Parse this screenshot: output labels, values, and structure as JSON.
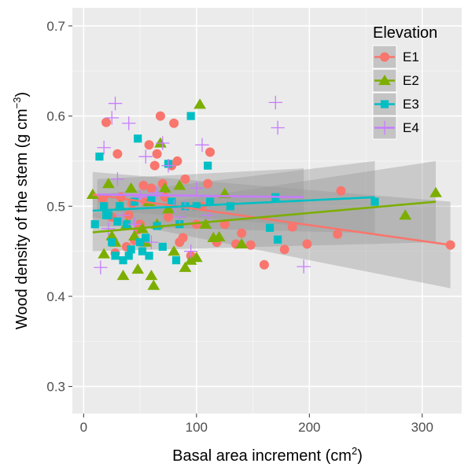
{
  "chart_data": {
    "type": "scatter",
    "xlabel": "Basal area increment (cm",
    "xlabel_sup": "2",
    "xlabel_end": ")",
    "ylabel": "Wood density of the stem (g cm",
    "ylabel_sup": "−3",
    "ylabel_end": ")",
    "xlim": [
      -10,
      335
    ],
    "ylim": [
      0.27,
      0.72
    ],
    "xticks": [
      0,
      100,
      200,
      300
    ],
    "yticks": [
      0.3,
      0.4,
      0.5,
      0.6,
      0.7
    ],
    "xtick_labels": [
      "0",
      "100",
      "200",
      "300"
    ],
    "ytick_labels": [
      "0.3",
      "0.4",
      "0.5",
      "0.6",
      "0.7"
    ],
    "grid": true,
    "legend": {
      "title": "Elevation",
      "position": "top-right"
    },
    "series": [
      {
        "name": "E1",
        "color": "#F8766D",
        "marker": "circle",
        "fit": {
          "x": [
            8,
            325
          ],
          "y": [
            0.513,
            0.457
          ],
          "ci_x": [
            8,
            325
          ],
          "ci_lower": [
            0.488,
            0.409
          ],
          "ci_upper": [
            0.538,
            0.505
          ]
        },
        "x": [
          17,
          20,
          25,
          28,
          30,
          33,
          38,
          40,
          43,
          45,
          48,
          50,
          53,
          55,
          58,
          60,
          63,
          65,
          68,
          70,
          72,
          75,
          78,
          80,
          83,
          85,
          88,
          90,
          95,
          100,
          105,
          110,
          112,
          118,
          125,
          135,
          140,
          148,
          160,
          178,
          185,
          198,
          225,
          228,
          325
        ],
        "y": [
          0.508,
          0.593,
          0.488,
          0.448,
          0.558,
          0.51,
          0.455,
          0.49,
          0.503,
          0.462,
          0.474,
          0.48,
          0.523,
          0.505,
          0.568,
          0.52,
          0.545,
          0.558,
          0.6,
          0.525,
          0.51,
          0.488,
          0.545,
          0.592,
          0.55,
          0.46,
          0.465,
          0.53,
          0.445,
          0.48,
          0.5,
          0.525,
          0.56,
          0.46,
          0.48,
          0.458,
          0.47,
          0.457,
          0.435,
          0.452,
          0.477,
          0.458,
          0.469,
          0.517,
          0.457
        ]
      },
      {
        "name": "E2",
        "color": "#7CAE00",
        "marker": "triangle",
        "fit": {
          "x": [
            8,
            312
          ],
          "y": [
            0.471,
            0.505
          ],
          "ci_x": [
            8,
            312
          ],
          "ci_lower": [
            0.45,
            0.46
          ],
          "ci_upper": [
            0.492,
            0.55
          ]
        },
        "x": [
          8,
          18,
          22,
          25,
          28,
          32,
          35,
          38,
          42,
          45,
          48,
          52,
          55,
          58,
          60,
          62,
          65,
          68,
          72,
          75,
          80,
          85,
          90,
          95,
          100,
          103,
          108,
          115,
          120,
          125,
          140,
          285,
          312
        ],
        "y": [
          0.513,
          0.447,
          0.525,
          0.467,
          0.46,
          0.5,
          0.423,
          0.48,
          0.52,
          0.467,
          0.43,
          0.475,
          0.46,
          0.505,
          0.423,
          0.412,
          0.48,
          0.57,
          0.52,
          0.497,
          0.45,
          0.523,
          0.432,
          0.44,
          0.443,
          0.613,
          0.48,
          0.465,
          0.466,
          0.514,
          0.458,
          0.49,
          0.515
        ]
      },
      {
        "name": "E3",
        "color": "#00BFC4",
        "marker": "square",
        "fit": {
          "x": [
            8,
            258
          ],
          "y": [
            0.495,
            0.51
          ],
          "ci_x": [
            8,
            258
          ],
          "ci_lower": [
            0.478,
            0.47
          ],
          "ci_upper": [
            0.512,
            0.55
          ]
        },
        "x": [
          10,
          14,
          18,
          20,
          22,
          25,
          28,
          30,
          32,
          35,
          38,
          40,
          42,
          45,
          48,
          50,
          52,
          55,
          58,
          60,
          65,
          70,
          75,
          78,
          82,
          85,
          90,
          95,
          100,
          110,
          112,
          130,
          165,
          170,
          172,
          258
        ],
        "y": [
          0.48,
          0.555,
          0.5,
          0.49,
          0.49,
          0.46,
          0.445,
          0.483,
          0.5,
          0.44,
          0.48,
          0.445,
          0.452,
          0.505,
          0.575,
          0.46,
          0.45,
          0.465,
          0.445,
          0.508,
          0.478,
          0.455,
          0.547,
          0.505,
          0.44,
          0.48,
          0.5,
          0.6,
          0.5,
          0.545,
          0.505,
          0.5,
          0.476,
          0.51,
          0.463,
          0.505
        ]
      },
      {
        "name": "E4",
        "color": "#C77CFF",
        "marker": "plus",
        "fit": {
          "x": [
            12,
            195
          ],
          "y": [
            0.513,
            0.51
          ],
          "ci_x": [
            12,
            195
          ],
          "ci_lower": [
            0.496,
            0.478
          ],
          "ci_upper": [
            0.53,
            0.542
          ]
        },
        "x": [
          15,
          18,
          22,
          25,
          28,
          30,
          35,
          40,
          45,
          50,
          55,
          60,
          65,
          70,
          75,
          80,
          85,
          90,
          95,
          100,
          105,
          110,
          170,
          172,
          195
        ],
        "y": [
          0.432,
          0.565,
          0.475,
          0.598,
          0.614,
          0.53,
          0.49,
          0.592,
          0.48,
          0.51,
          0.555,
          0.46,
          0.515,
          0.57,
          0.545,
          0.5,
          0.488,
          0.5,
          0.45,
          0.52,
          0.568,
          0.49,
          0.615,
          0.587,
          0.433
        ]
      }
    ]
  }
}
